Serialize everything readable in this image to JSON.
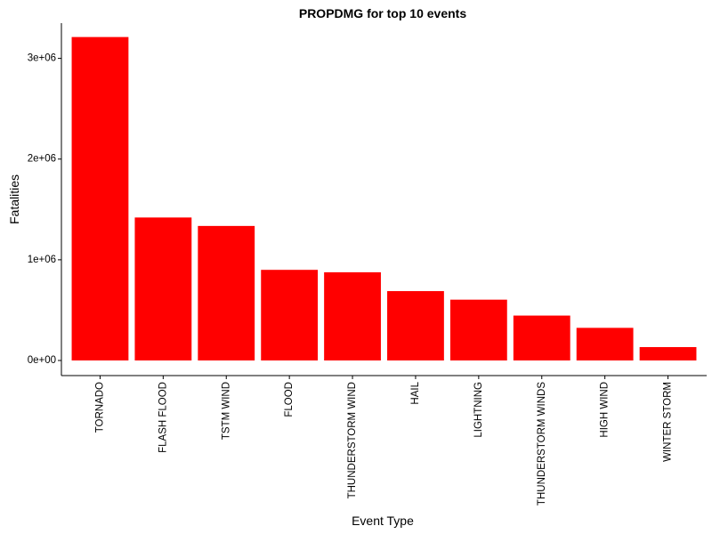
{
  "chart_data": {
    "type": "bar",
    "title": "PROPDMG for top 10 events",
    "xlabel": "Event Type",
    "ylabel": "Fatalities",
    "categories": [
      "TORNADO",
      "FLASH FLOOD",
      "TSTM WIND",
      "FLOOD",
      "THUNDERSTORM WIND",
      "HAIL",
      "LIGHTNING",
      "THUNDERSTORM WINDS",
      "HIGH WIND",
      "WINTER STORM"
    ],
    "values": [
      3212000,
      1420000,
      1336000,
      900000,
      876000,
      689000,
      604000,
      446000,
      324000,
      133000
    ],
    "ylim": [
      -150000,
      3350000
    ],
    "yticks": [
      0,
      1000000,
      2000000,
      3000000
    ],
    "ytick_labels": [
      "0e+00",
      "1e+06",
      "2e+06",
      "3e+06"
    ],
    "bar_color": "#ff0000",
    "grid": false,
    "legend": "none"
  }
}
